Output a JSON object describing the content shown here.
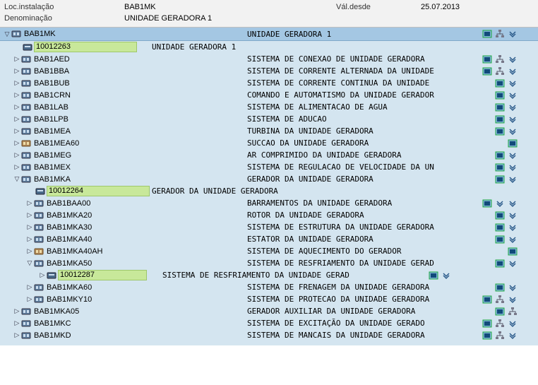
{
  "header": {
    "loc_label": "Loc.instalação",
    "loc_value": "BAB1MK",
    "valdesde_label": "Vál.desde",
    "valdesde_value": "25.07.2013",
    "denom_label": "Denominação",
    "denom_value": "UNIDADE GERADORA 1"
  },
  "root": {
    "code": "BAB1MK",
    "desc": "UNIDADE GERADORA 1"
  },
  "equip_root": {
    "code": "10012263",
    "desc": "UNIDADE GERADORA 1"
  },
  "level1": [
    {
      "code": "BAB1AED",
      "desc": "SISTEMA DE CONEXAO DE UNIDADE GERADORA",
      "icons": [
        "monitor",
        "hier",
        "down"
      ]
    },
    {
      "code": "BAB1BBA",
      "desc": "SISTEMA DE CORRENTE ALTERNADA DA UNIDADE",
      "icons": [
        "monitor",
        "hier",
        "down"
      ]
    },
    {
      "code": "BAB1BUB",
      "desc": "SISTEMA DE CORRENTE CONTINUA DA UNIDADE",
      "icons": [
        "monitor",
        "down"
      ]
    },
    {
      "code": "BAB1CRN",
      "desc": "COMANDO E AUTOMATISMO DA UNIDADE GERADOR",
      "icons": [
        "monitor",
        "down"
      ]
    },
    {
      "code": "BAB1LAB",
      "desc": "SISTEMA DE ALIMENTACAO DE AGUA",
      "icons": [
        "monitor",
        "down"
      ]
    },
    {
      "code": "BAB1LPB",
      "desc": "SISTEMA DE ADUCAO",
      "icons": [
        "monitor",
        "down"
      ]
    },
    {
      "code": "BAB1MEA",
      "desc": "TURBINA DA UNIDADE GERADORA",
      "icons": [
        "monitor",
        "down"
      ]
    },
    {
      "code": "BAB1MEA60",
      "desc": "SUCCAO DA UNIDADE GERADORA",
      "icons": [
        "monitor"
      ],
      "alt_icon": true
    },
    {
      "code": "BAB1MEG",
      "desc": "AR COMPRIMIDO DA UNIDADE GERADORA",
      "icons": [
        "monitor",
        "down"
      ]
    },
    {
      "code": "BAB1MEX",
      "desc": "SISTEMA DE REGULACAO DE VELOCIDADE DA UN",
      "icons": [
        "monitor",
        "down"
      ]
    }
  ],
  "mka": {
    "code": "BAB1MKA",
    "desc": "GERADOR DA UNIDADE GERADORA",
    "icons": [
      "monitor",
      "down"
    ]
  },
  "equip_mka": {
    "code": "10012264",
    "desc": "GERADOR DA UNIDADE GERADORA"
  },
  "level2": [
    {
      "code": "BAB1BAA00",
      "desc": "BARRAMENTOS DA UNIDADE GERADORA",
      "icons": [
        "monitor",
        "down",
        "down2"
      ]
    },
    {
      "code": "BAB1MKA20",
      "desc": "ROTOR DA UNIDADE GERADORA",
      "icons": [
        "monitor",
        "down"
      ]
    },
    {
      "code": "BAB1MKA30",
      "desc": "SISTEMA DE ESTRUTURA DA UNIDADE GERADORA",
      "icons": [
        "monitor",
        "down"
      ]
    },
    {
      "code": "BAB1MKA40",
      "desc": "ESTATOR DA UNIDADE GERADORA",
      "icons": [
        "monitor",
        "down"
      ]
    },
    {
      "code": "BAB1MKA40AH",
      "desc": "SISTEMA DE AQUECIMENTO DO GERADOR",
      "icons": [
        "monitor"
      ],
      "alt_icon": true
    }
  ],
  "mka50": {
    "code": "BAB1MKA50",
    "desc": "SISTEMA DE RESFRIAMENTO DA UNIDADE GERAD",
    "icons": [
      "monitor",
      "down"
    ]
  },
  "equip_mka50": {
    "code": "10012287",
    "desc": "SISTEMA DE RESFRIAMENTO DA UNIDADE GERAD",
    "icons": [
      "monitor",
      "down"
    ]
  },
  "level2b": [
    {
      "code": "BAB1MKA60",
      "desc": "SISTEMA DE FRENAGEM DA UNIDADE GERADORA",
      "icons": [
        "monitor",
        "down"
      ]
    },
    {
      "code": "BAB1MKY10",
      "desc": "SISTEMA DE PROTECAO DA UNIDADE GERADORA",
      "icons": [
        "monitor",
        "hier",
        "down"
      ]
    }
  ],
  "level1b": [
    {
      "code": "BAB1MKA05",
      "desc": "GERADOR AUXILIAR DA UNIDADE GERADORA",
      "icons": [
        "monitor",
        "hier"
      ]
    },
    {
      "code": "BAB1MKC",
      "desc": "SISTEMA DE EXCITAÇÃO DA UNIDADE GERADO",
      "icons": [
        "monitor",
        "hier",
        "down"
      ]
    },
    {
      "code": "BAB1MKD",
      "desc": "SISTEMA DE MANCAIS DA UNIDADE GERADORA",
      "icons": [
        "monitor",
        "hier",
        "down"
      ]
    }
  ],
  "colors": {
    "highlight": "#c8e89a",
    "root_bg": "#a4c7e3",
    "tree_bg": "#d4e5f0"
  }
}
